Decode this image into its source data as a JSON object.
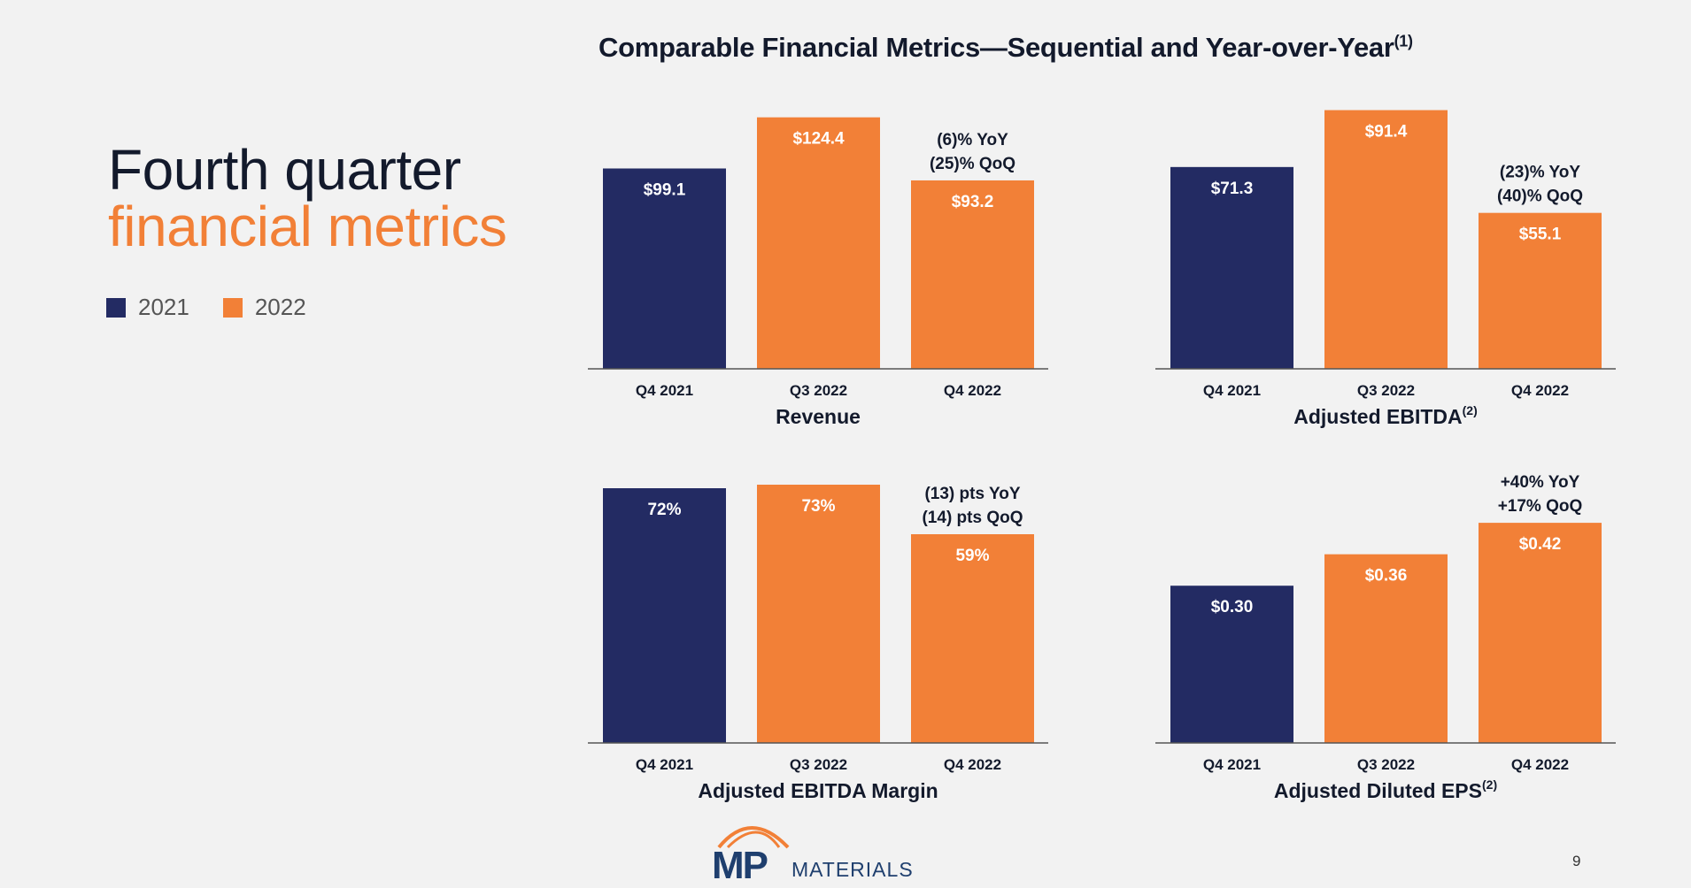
{
  "heading": {
    "line1": "Fourth quarter",
    "line2": "financial metrics"
  },
  "legend": [
    {
      "label": "2021",
      "color": "#232b63"
    },
    {
      "label": "2022",
      "color": "#f28037"
    }
  ],
  "main_title": {
    "text": "Comparable Financial Metrics—Sequential and Year-over-Year",
    "sup": "(1)"
  },
  "page_number": "9",
  "logo": {
    "mp": "MP",
    "text": "MATERIALS"
  },
  "chart_data": [
    {
      "type": "bar",
      "title": "Revenue",
      "title_sup": "",
      "categories": [
        "Q4 2021",
        "Q3 2022",
        "Q4 2022"
      ],
      "values": [
        99.1,
        124.4,
        93.2
      ],
      "value_labels": [
        "$99.1",
        "$124.4",
        "$93.2"
      ],
      "colors": [
        "#232b63",
        "#f28037",
        "#f28037"
      ],
      "annotation": [
        "(6)% YoY",
        "(25)% QoQ"
      ],
      "ylim": [
        0,
        140
      ]
    },
    {
      "type": "bar",
      "title": "Adjusted EBITDA",
      "title_sup": "(2)",
      "categories": [
        "Q4 2021",
        "Q3 2022",
        "Q4 2022"
      ],
      "values": [
        71.3,
        91.4,
        55.1
      ],
      "value_labels": [
        "$71.3",
        "$91.4",
        "$55.1"
      ],
      "colors": [
        "#232b63",
        "#f28037",
        "#f28037"
      ],
      "annotation": [
        "(23)% YoY",
        "(40)% QoQ"
      ],
      "ylim": [
        0,
        100
      ]
    },
    {
      "type": "bar",
      "title": "Adjusted EBITDA Margin",
      "title_sup": "",
      "categories": [
        "Q4 2021",
        "Q3 2022",
        "Q4 2022"
      ],
      "values": [
        72,
        73,
        59
      ],
      "value_labels": [
        "72%",
        "73%",
        "59%"
      ],
      "colors": [
        "#232b63",
        "#f28037",
        "#f28037"
      ],
      "annotation": [
        "(13) pts YoY",
        "(14) pts QoQ"
      ],
      "ylim": [
        0,
        80
      ]
    },
    {
      "type": "bar",
      "title": "Adjusted Diluted EPS",
      "title_sup": "(2)",
      "categories": [
        "Q4 2021",
        "Q3 2022",
        "Q4 2022"
      ],
      "values": [
        0.3,
        0.36,
        0.42
      ],
      "value_labels": [
        "$0.30",
        "$0.36",
        "$0.42"
      ],
      "colors": [
        "#232b63",
        "#f28037",
        "#f28037"
      ],
      "annotation": [
        "+40% YoY",
        "+17% QoQ"
      ],
      "ylim": [
        0,
        0.54
      ]
    }
  ]
}
